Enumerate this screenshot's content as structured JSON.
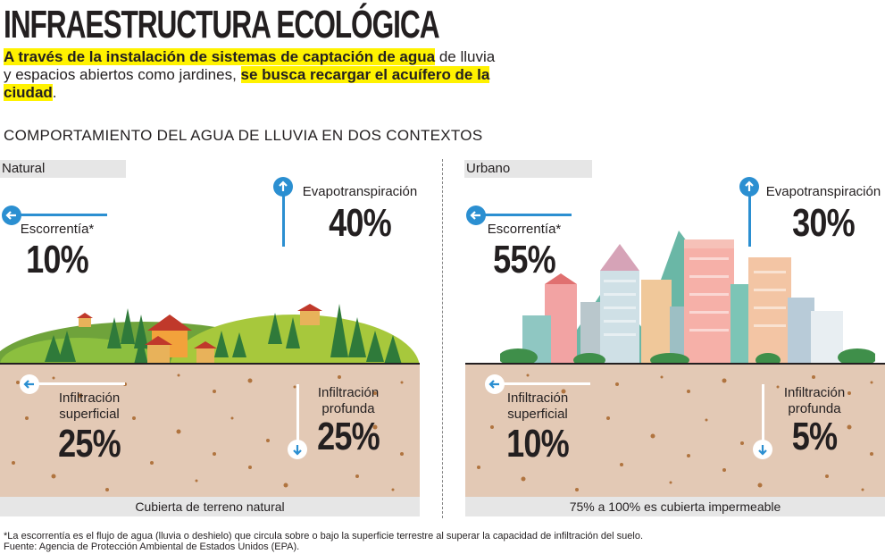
{
  "header": {
    "title": "INFRAESTRUCTURA ECOLÓGICA",
    "subtitle_part1": "A través de la instalación de sistemas de captación de agua",
    "subtitle_part2": " de lluvia y espacios abiertos como jardines, ",
    "subtitle_part3": "se busca recargar el acuífero de la ciudad",
    "subtitle_part4": "."
  },
  "section_title": "COMPORTAMIENTO DEL AGUA DE LLUVIA EN DOS CONTEXTOS",
  "natural": {
    "label": "Natural",
    "evapo_label": "Evapotranspiración",
    "evapo_value": "40%",
    "escorrentia_label": "Escorrentía*",
    "escorrentia_value": "10%",
    "inf_sup_label_1": "Infiltración",
    "inf_sup_label_2": "superficial",
    "inf_sup_value": "25%",
    "inf_prof_label_1": "Infiltración",
    "inf_prof_label_2": "profunda",
    "inf_prof_value": "25%",
    "footer": "Cubierta de terreno natural"
  },
  "urbano": {
    "label": "Urbano",
    "evapo_label": "Evapotranspiración",
    "evapo_value": "30%",
    "escorrentia_label": "Escorrentía*",
    "escorrentia_value": "55%",
    "inf_sup_label_1": "Infiltración",
    "inf_sup_label_2": "superficial",
    "inf_sup_value": "10%",
    "inf_prof_label_1": "Infiltración",
    "inf_prof_label_2": "profunda",
    "inf_prof_value": "5%",
    "footer": "75% a 100% es cubierta impermeable"
  },
  "notes": {
    "asterisk": "*La escorrentía es el flujo de agua (lluvia o deshielo) que circula sobre o bajo la superficie terrestre al superar la capacidad de infiltración del suelo.",
    "source": "Fuente: Agencia de Protección Ambiental de Estados Unidos (EPA)."
  },
  "colors": {
    "arrow_blue": "#2b8fd1",
    "highlight": "#fff200",
    "soil": "#e3c9b5",
    "panel_gray": "#e6e6e6"
  }
}
